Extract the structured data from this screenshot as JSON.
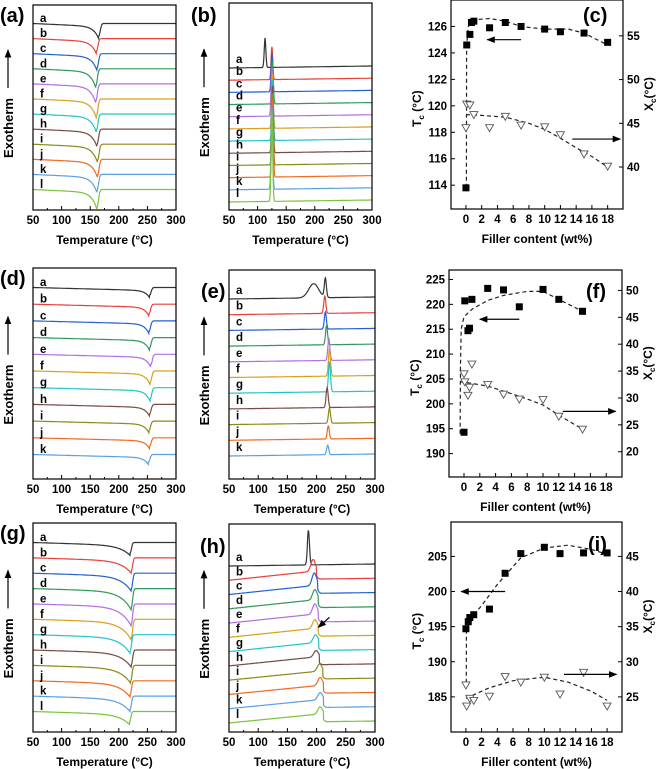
{
  "curve_colors": {
    "a": "#333333",
    "b": "#e8413b",
    "c": "#2461d1",
    "d": "#2e9a5a",
    "e": "#b36ee0",
    "f": "#d9a01c",
    "g": "#22c4c8",
    "h": "#7a4a44",
    "i": "#8a8a1a",
    "j": "#f06a20",
    "k": "#5aa0e0",
    "l": "#7ac43a"
  },
  "chart_data": [
    {
      "panel": "(a)",
      "type": "line",
      "xlabel": "Temperature (°C)",
      "ylabel": "Exotherm",
      "xlim": [
        50,
        300
      ],
      "xticks": [
        50,
        100,
        150,
        200,
        250,
        300
      ],
      "peak_direction": "down",
      "curves": [
        {
          "label": "a",
          "peak_temp": 165,
          "relative_peak_height": 1.5
        },
        {
          "label": "b",
          "peak_temp": 161,
          "relative_peak_height": 1.5
        },
        {
          "label": "c",
          "peak_temp": 162,
          "relative_peak_height": 1.7
        },
        {
          "label": "d",
          "peak_temp": 160,
          "relative_peak_height": 2.0
        },
        {
          "label": "e",
          "peak_temp": 160,
          "relative_peak_height": 2.0
        },
        {
          "label": "f",
          "peak_temp": 161,
          "relative_peak_height": 2.0
        },
        {
          "label": "g",
          "peak_temp": 161,
          "relative_peak_height": 1.9
        },
        {
          "label": "h",
          "peak_temp": 162,
          "relative_peak_height": 1.8
        },
        {
          "label": "i",
          "peak_temp": 163,
          "relative_peak_height": 1.9
        },
        {
          "label": "j",
          "peak_temp": 163,
          "relative_peak_height": 1.9
        },
        {
          "label": "k",
          "peak_temp": 162,
          "relative_peak_height": 1.9
        },
        {
          "label": "l",
          "peak_temp": 162,
          "relative_peak_height": 2.1
        }
      ]
    },
    {
      "panel": "(b)",
      "type": "line",
      "xlabel": "Temperature (°C)",
      "ylabel": "Exotherm",
      "xlim": [
        50,
        300
      ],
      "xticks": [
        50,
        100,
        150,
        200,
        250,
        300
      ],
      "peak_direction": "up",
      "curves": [
        {
          "label": "a",
          "peak_temp": 113,
          "relative_peak_height": 4.4
        },
        {
          "label": "b",
          "peak_temp": 125,
          "relative_peak_height": 4.9
        },
        {
          "label": "c",
          "peak_temp": 125,
          "relative_peak_height": 5.7
        },
        {
          "label": "d",
          "peak_temp": 126,
          "relative_peak_height": 6.4
        },
        {
          "label": "e",
          "peak_temp": 125,
          "relative_peak_height": 7.2
        },
        {
          "label": "f",
          "peak_temp": 126,
          "relative_peak_height": 8.2
        },
        {
          "label": "g",
          "peak_temp": 126,
          "relative_peak_height": 9.1
        },
        {
          "label": "h",
          "peak_temp": 126,
          "relative_peak_height": 10.0
        },
        {
          "label": "i",
          "peak_temp": 126,
          "relative_peak_height": 10.7
        },
        {
          "label": "j",
          "peak_temp": 126,
          "relative_peak_height": 11.6
        },
        {
          "label": "k",
          "peak_temp": 125,
          "relative_peak_height": 12.5
        },
        {
          "label": "l",
          "peak_temp": 125,
          "relative_peak_height": 13.2
        }
      ]
    },
    {
      "panel": "(c)",
      "type": "scatter",
      "xlabel": "Filler content (wt%)",
      "ylabel_left": "T",
      "ylabel_left_sub": "c",
      "ylabel_left_unit": " (°C)",
      "ylabel_right": "X",
      "ylabel_right_sub": "c",
      "ylabel_right_unit": "(°C)",
      "xlim": [
        -1.9,
        19.95
      ],
      "xticks": [
        0,
        2,
        4,
        6,
        8,
        10,
        12,
        14,
        16,
        18
      ],
      "ylim_left": [
        112.2,
        128
      ],
      "yticks_left": [
        114,
        116,
        118,
        120,
        122,
        124,
        126
      ],
      "ylim_right": [
        35.2,
        59.1
      ],
      "yticks_right": [
        40,
        45,
        50,
        55
      ],
      "series": [
        {
          "axis": "left",
          "marker": "filled-square",
          "x": [
            0,
            0.1,
            0.5,
            0.7,
            1,
            3,
            5,
            7,
            10,
            12,
            15,
            18
          ],
          "y": [
            113.8,
            124.6,
            125.4,
            126.3,
            126.4,
            125.9,
            126.3,
            126.0,
            125.8,
            125.6,
            125.5,
            124.8
          ]
        },
        {
          "axis": "right",
          "marker": "open-triangle",
          "x": [
            0,
            0.1,
            0.5,
            1,
            3,
            5,
            7,
            10,
            12,
            15,
            18
          ],
          "y": [
            44.5,
            47.2,
            47.1,
            46.0,
            44.5,
            45.8,
            44.8,
            44.6,
            43.7,
            41.5,
            40.1
          ]
        }
      ],
      "trends": [
        {
          "axis": "left",
          "x": [
            0.05,
            0.08,
            0.3,
            1,
            3,
            5,
            7,
            10,
            13,
            15,
            18
          ],
          "y": [
            113.8,
            124.5,
            126,
            126.5,
            126.6,
            126.4,
            126.0,
            125.8,
            125.8,
            125.5,
            124.6
          ]
        },
        {
          "axis": "right",
          "x": [
            0,
            2,
            5,
            8,
            10,
            12,
            14,
            16,
            18
          ],
          "y": [
            46.0,
            45.9,
            45.7,
            45.0,
            44.3,
            43.3,
            42.2,
            41.2,
            40.0
          ]
        }
      ]
    },
    {
      "panel": "(d)",
      "type": "line",
      "xlabel": "Temperature (°C)",
      "ylabel": "Exotherm",
      "xlim": [
        50,
        300
      ],
      "xticks": [
        50,
        100,
        150,
        200,
        250,
        300
      ],
      "peak_direction": "down",
      "curves": [
        {
          "label": "a",
          "peak_temp": 254,
          "relative_peak_height": 0.8
        },
        {
          "label": "b",
          "peak_temp": 253,
          "relative_peak_height": 1.0
        },
        {
          "label": "c",
          "peak_temp": 253,
          "relative_peak_height": 1.1
        },
        {
          "label": "d",
          "peak_temp": 254,
          "relative_peak_height": 1.1
        },
        {
          "label": "e",
          "peak_temp": 256,
          "relative_peak_height": 1.1
        },
        {
          "label": "f",
          "peak_temp": 255,
          "relative_peak_height": 1.2
        },
        {
          "label": "g",
          "peak_temp": 255,
          "relative_peak_height": 1.2
        },
        {
          "label": "h",
          "peak_temp": 254,
          "relative_peak_height": 1.0
        },
        {
          "label": "i",
          "peak_temp": 253,
          "relative_peak_height": 1.0
        },
        {
          "label": "j",
          "peak_temp": 254,
          "relative_peak_height": 0.9
        },
        {
          "label": "k",
          "peak_temp": 252,
          "relative_peak_height": 0.8
        }
      ]
    },
    {
      "panel": "(e)",
      "type": "line",
      "xlabel": "Temperature (°C)",
      "ylabel": "Exotherm",
      "xlim": [
        50,
        300
      ],
      "xticks": [
        50,
        100,
        150,
        200,
        250,
        300
      ],
      "peak_direction": "up",
      "curves": [
        {
          "label": "a",
          "peak_temp": 215,
          "relative_peak_height": 2.2
        },
        {
          "label": "b",
          "peak_temp": 214,
          "relative_peak_height": 2.0
        },
        {
          "label": "c",
          "peak_temp": 215,
          "relative_peak_height": 2.0
        },
        {
          "label": "d",
          "peak_temp": 217,
          "relative_peak_height": 2.2
        },
        {
          "label": "e",
          "peak_temp": 221,
          "relative_peak_height": 2.5
        },
        {
          "label": "f",
          "peak_temp": 222,
          "relative_peak_height": 3.2
        },
        {
          "label": "g",
          "peak_temp": 222,
          "relative_peak_height": 3.5
        },
        {
          "label": "h",
          "peak_temp": 218,
          "relative_peak_height": 2.3
        },
        {
          "label": "i",
          "peak_temp": 222,
          "relative_peak_height": 1.8
        },
        {
          "label": "j",
          "peak_temp": 220,
          "relative_peak_height": 1.5
        },
        {
          "label": "k",
          "peak_temp": 219,
          "relative_peak_height": 1.1
        }
      ]
    },
    {
      "panel": "(f)",
      "type": "scatter",
      "xlabel": "Filler content (wt%)",
      "ylabel_left": "T",
      "ylabel_left_sub": "c",
      "ylabel_left_unit": " (°C)",
      "ylabel_right": "X",
      "ylabel_right_sub": "c",
      "ylabel_right_unit": "(°C)",
      "xlim": [
        -1.9,
        20
      ],
      "xticks": [
        0,
        2,
        4,
        6,
        8,
        10,
        12,
        14,
        16,
        18
      ],
      "ylim_left": [
        185.3,
        226.9
      ],
      "yticks_left": [
        190,
        195,
        200,
        205,
        210,
        215,
        220,
        225
      ],
      "ylim_right": [
        15.3,
        53.8
      ],
      "yticks_right": [
        20,
        25,
        30,
        35,
        40,
        45,
        50
      ],
      "series": [
        {
          "axis": "left",
          "marker": "filled-square",
          "x": [
            0,
            0.1,
            0.5,
            0.7,
            1,
            3,
            5,
            7,
            10,
            12,
            15
          ],
          "y": [
            194.3,
            220.7,
            214.7,
            215.2,
            221.0,
            223.2,
            222.9,
            219.5,
            223.0,
            221.0,
            218.6
          ]
        },
        {
          "axis": "right",
          "marker": "open-triangle",
          "x": [
            0,
            0.1,
            0.5,
            0.7,
            1,
            3,
            5,
            7,
            10,
            12,
            15
          ],
          "y": [
            34.5,
            33.0,
            30.5,
            32.0,
            36.3,
            32.5,
            30.7,
            29.8,
            29.7,
            26.6,
            24.2
          ]
        }
      ],
      "trends": [
        {
          "axis": "left",
          "x": [
            -0.5,
            -0.45,
            -0.35,
            0,
            1,
            3,
            5,
            8,
            10,
            12,
            15
          ],
          "y": [
            194,
            208,
            215,
            217.5,
            219,
            220.8,
            221.8,
            222.6,
            222.6,
            221,
            218.6
          ]
        },
        {
          "axis": "right",
          "x": [
            -0.5,
            1,
            3,
            6,
            8,
            10,
            12,
            15
          ],
          "y": [
            33.0,
            32.7,
            32.2,
            30.8,
            29.8,
            28.7,
            26.8,
            24.2
          ]
        }
      ]
    },
    {
      "panel": "(g)",
      "type": "line",
      "xlabel": "Temperature (°C)",
      "ylabel": "Exotherm",
      "xlim": [
        50,
        300
      ],
      "xticks": [
        50,
        100,
        150,
        200,
        250,
        300
      ],
      "peak_direction": "down",
      "curves": [
        {
          "label": "a",
          "peak_temp": 220,
          "relative_peak_height": 1.2
        },
        {
          "label": "b",
          "peak_temp": 222,
          "relative_peak_height": 1.5
        },
        {
          "label": "c",
          "peak_temp": 222,
          "relative_peak_height": 1.8
        },
        {
          "label": "d",
          "peak_temp": 222,
          "relative_peak_height": 2.2
        },
        {
          "label": "e",
          "peak_temp": 222,
          "relative_peak_height": 2.3
        },
        {
          "label": "f",
          "peak_temp": 222,
          "relative_peak_height": 2.1
        },
        {
          "label": "g",
          "peak_temp": 220,
          "relative_peak_height": 1.9
        },
        {
          "label": "h",
          "peak_temp": 222,
          "relative_peak_height": 1.7
        },
        {
          "label": "i",
          "peak_temp": 221,
          "relative_peak_height": 1.8
        },
        {
          "label": "j",
          "peak_temp": 220,
          "relative_peak_height": 1.6
        },
        {
          "label": "k",
          "peak_temp": 220,
          "relative_peak_height": 1.5
        },
        {
          "label": "l",
          "peak_temp": 219,
          "relative_peak_height": 1.2
        }
      ]
    },
    {
      "panel": "(h)",
      "type": "line",
      "xlabel": "Temperature (°C)",
      "ylabel": "Exotherm",
      "xlim": [
        50,
        300
      ],
      "xticks": [
        50,
        100,
        150,
        200,
        250,
        300
      ],
      "peak_direction": "up",
      "annotation": "arrow pointing to curve f peak",
      "curves": [
        {
          "label": "a",
          "peak_temp": 186,
          "relative_peak_height": 4.4
        },
        {
          "label": "b",
          "peak_temp": 194,
          "relative_peak_height": 1.5
        },
        {
          "label": "c",
          "peak_temp": 196,
          "relative_peak_height": 1.6
        },
        {
          "label": "d",
          "peak_temp": 197,
          "relative_peak_height": 1.3
        },
        {
          "label": "e",
          "peak_temp": 197,
          "relative_peak_height": 1.3
        },
        {
          "label": "f",
          "peak_temp": 197,
          "relative_peak_height": 1.1
        },
        {
          "label": "g",
          "peak_temp": 198,
          "relative_peak_height": 1.0
        },
        {
          "label": "h",
          "peak_temp": 199,
          "relative_peak_height": 0.8
        },
        {
          "label": "i",
          "peak_temp": 205,
          "relative_peak_height": 0.9
        },
        {
          "label": "j",
          "peak_temp": 206,
          "relative_peak_height": 1.0
        },
        {
          "label": "k",
          "peak_temp": 206,
          "relative_peak_height": 0.9
        },
        {
          "label": "l",
          "peak_temp": 206,
          "relative_peak_height": 0.9
        }
      ]
    },
    {
      "panel": "(i)",
      "type": "scatter",
      "xlabel": "Filler content (wt%)",
      "ylabel_left": "T",
      "ylabel_left_sub": "c",
      "ylabel_left_unit": " (°C)",
      "ylabel_right": "X",
      "ylabel_right_sub": "c",
      "ylabel_right_unit": "(°C)",
      "xlim": [
        -1.9,
        19.9
      ],
      "xticks": [
        0,
        2,
        4,
        6,
        8,
        10,
        12,
        14,
        16,
        18
      ],
      "ylim_left": [
        180,
        209.9
      ],
      "yticks_left": [
        185,
        190,
        195,
        200,
        205
      ],
      "ylim_right": [
        20,
        49.9
      ],
      "yticks_right": [
        25,
        30,
        35,
        40,
        45
      ],
      "series": [
        {
          "axis": "left",
          "marker": "filled-square",
          "x": [
            0,
            0.3,
            0.5,
            1,
            3,
            5,
            7,
            10,
            12,
            15,
            18
          ],
          "y": [
            194.7,
            195.7,
            196.3,
            196.7,
            197.5,
            202.6,
            205.4,
            206.3,
            205.4,
            205.5,
            205.5
          ]
        },
        {
          "axis": "right",
          "marker": "open-triangle",
          "x": [
            0,
            0.1,
            0.5,
            1,
            3,
            5,
            7,
            10,
            12,
            15,
            18
          ],
          "y": [
            26.7,
            23.7,
            24.8,
            24.5,
            25.1,
            27.9,
            27.1,
            27.8,
            25.4,
            28.5,
            23.7
          ]
        }
      ],
      "trends": [
        {
          "axis": "left",
          "x": [
            0.05,
            0.06,
            0.5,
            2,
            4,
            7,
            10,
            13,
            16,
            18
          ],
          "y": [
            187,
            194.3,
            196,
            198,
            201,
            204.8,
            206.2,
            206.6,
            206,
            205.3
          ]
        },
        {
          "axis": "right",
          "x": [
            0,
            3,
            6,
            10,
            13,
            16,
            18
          ],
          "y": [
            24.8,
            26.3,
            27.3,
            27.8,
            27.1,
            25.8,
            24.5
          ]
        }
      ]
    }
  ]
}
